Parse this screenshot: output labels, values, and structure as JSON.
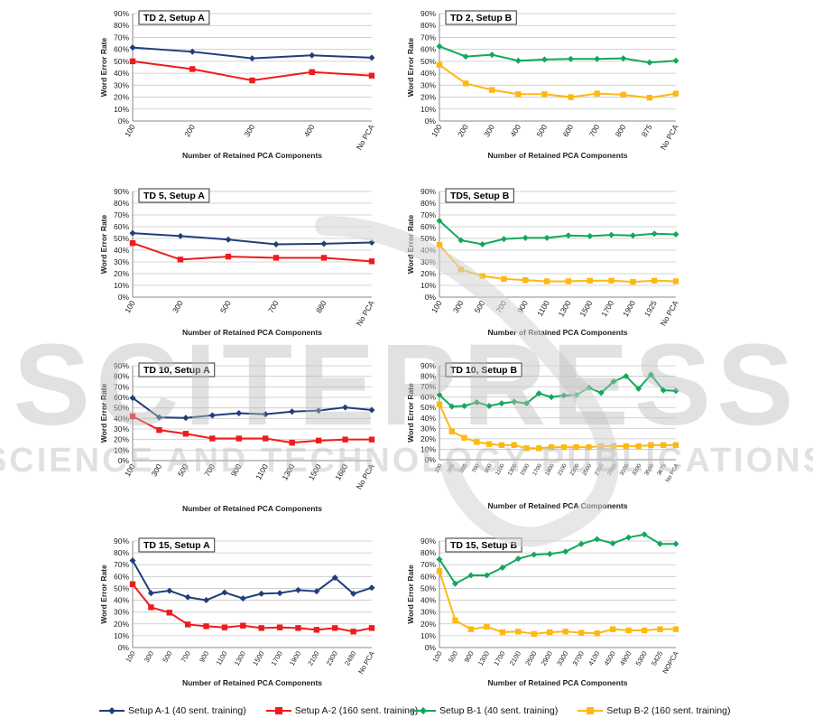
{
  "colors": {
    "setup_a_1": "#1f3f7a",
    "setup_a_2": "#ee1c1c",
    "setup_b_1": "#12a85a",
    "setup_b_2": "#fdb912",
    "grid": "#c8c8c8",
    "axis": "#888888",
    "watermark": "#bdbdbd"
  },
  "watermark": {
    "title": "SCITEPRESS",
    "subtitle": "SCIENCE AND TECHNOLOGY PUBLICATIONS"
  },
  "legend_left": [
    {
      "label": "Setup A-1 (40 sent. training)",
      "color": "#1f3f7a",
      "marker": "diamond"
    },
    {
      "label": "Setup A-2 (160 sent. training)",
      "color": "#ee1c1c",
      "marker": "square"
    }
  ],
  "legend_right": [
    {
      "label": "Setup B-1 (40 sent. training)",
      "color": "#12a85a",
      "marker": "diamond"
    },
    {
      "label": "Setup B-2 (160 sent. training)",
      "color": "#fdb912",
      "marker": "square"
    }
  ],
  "chart_data": [
    {
      "type": "line",
      "title": "TD 2, Setup A",
      "xlabel": "Number of Retained PCA Components",
      "ylabel": "Word Error Rate",
      "ylim": [
        0,
        90
      ],
      "yticks": [
        "0%",
        "10%",
        "20%",
        "30%",
        "40%",
        "50%",
        "60%",
        "70%",
        "80%",
        "90%"
      ],
      "grid": true,
      "categories": [
        "100",
        "200",
        "300",
        "400",
        "No PCA"
      ],
      "series": [
        {
          "name": "Setup A-1 (40 sent. training)",
          "values": [
            61.5,
            58,
            52.5,
            55,
            53
          ]
        },
        {
          "name": "Setup A-2 (160 sent. training)",
          "values": [
            50,
            43.5,
            34,
            41,
            38
          ]
        }
      ]
    },
    {
      "type": "line",
      "title": "TD 2, Setup B",
      "xlabel": "Number of Retained PCA Components",
      "ylabel": "Word Error Rate",
      "ylim": [
        0,
        90
      ],
      "yticks": [
        "0%",
        "10%",
        "20%",
        "30%",
        "40%",
        "50%",
        "60%",
        "70%",
        "80%",
        "90%"
      ],
      "grid": true,
      "categories": [
        "100",
        "200",
        "300",
        "400",
        "500",
        "600",
        "700",
        "800",
        "875",
        "No PCA"
      ],
      "series": [
        {
          "name": "Setup B-1 (40 sent. training)",
          "values": [
            62.5,
            54,
            55.5,
            50.5,
            51.5,
            52,
            52,
            52.5,
            49,
            50.5
          ]
        },
        {
          "name": "Setup B-2 (160 sent. training)",
          "values": [
            47,
            31.5,
            26,
            22.5,
            22.5,
            20,
            23,
            22,
            19.5,
            23
          ]
        }
      ]
    },
    {
      "type": "line",
      "title": "TD 5, Setup A",
      "xlabel": "Number of Retained PCA Components",
      "ylabel": "Word Error Rate",
      "ylim": [
        0,
        90
      ],
      "yticks": [
        "0%",
        "10%",
        "20%",
        "30%",
        "40%",
        "50%",
        "60%",
        "70%",
        "80%",
        "90%"
      ],
      "grid": true,
      "categories": [
        "100",
        "300",
        "500",
        "700",
        "880",
        "No PCA"
      ],
      "series": [
        {
          "name": "Setup A-1 (40 sent. training)",
          "values": [
            54.5,
            52,
            49,
            45,
            45.5,
            46.5
          ]
        },
        {
          "name": "Setup A-2 (160 sent. training)",
          "values": [
            46,
            32,
            34.5,
            33.5,
            33.5,
            30.5
          ]
        }
      ]
    },
    {
      "type": "line",
      "title": "TD5, Setup B",
      "xlabel": "Number of Retained PCA Components",
      "ylabel": "Word Error Rate",
      "ylim": [
        0,
        90
      ],
      "yticks": [
        "0%",
        "10%",
        "20%",
        "30%",
        "40%",
        "50%",
        "60%",
        "70%",
        "80%",
        "90%"
      ],
      "grid": true,
      "categories": [
        "100",
        "300",
        "500",
        "700",
        "900",
        "1100",
        "1300",
        "1500",
        "1700",
        "1900",
        "1925",
        "No PCA"
      ],
      "series": [
        {
          "name": "Setup B-1 (40 sent. training)",
          "values": [
            65,
            48.5,
            45,
            49.5,
            50.5,
            50.5,
            52.5,
            52,
            53,
            52.5,
            54,
            53.5
          ]
        },
        {
          "name": "Setup B-2 (160 sent. training)",
          "values": [
            44.5,
            23.5,
            18,
            15.5,
            14.5,
            13.5,
            13.5,
            14,
            14,
            13,
            14,
            13.5
          ]
        }
      ]
    },
    {
      "type": "line",
      "title": "TD 10, Setup A",
      "xlabel": "Number of Retained PCA Components",
      "ylabel": "Word Error Rate",
      "ylim": [
        0,
        90
      ],
      "yticks": [
        "0%",
        "10%",
        "20%",
        "30%",
        "40%",
        "50%",
        "60%",
        "70%",
        "80%",
        "90%"
      ],
      "grid": true,
      "categories": [
        "100",
        "300",
        "500",
        "700",
        "900",
        "1100",
        "1300",
        "1500",
        "1680",
        "No PCA"
      ],
      "series": [
        {
          "name": "Setup A-1 (40 sent. training)",
          "values": [
            59.5,
            41,
            40.5,
            43,
            45,
            44,
            46.5,
            47.5,
            50.5,
            48
          ]
        },
        {
          "name": "Setup A-2 (160 sent. training)",
          "values": [
            42,
            29,
            25.5,
            21,
            21,
            21,
            17,
            19,
            20,
            20
          ]
        }
      ]
    },
    {
      "type": "line",
      "title": "TD 10, Setup B",
      "xlabel": "Number of Retained PCA Components",
      "ylabel": "Word Error Rate",
      "ylim": [
        0,
        90
      ],
      "yticks": [
        "0%",
        "10%",
        "20%",
        "30%",
        "40%",
        "50%",
        "60%",
        "70%",
        "80%",
        "90%"
      ],
      "grid": true,
      "categories": [
        "100",
        "300",
        "500",
        "700",
        "900",
        "1100",
        "1300",
        "1500",
        "1700",
        "1900",
        "2100",
        "2300",
        "2500",
        "2700",
        "2900",
        "3100",
        "3300",
        "3500",
        "3675",
        "No PCA"
      ],
      "series": [
        {
          "name": "Setup B-1 (40 sent. training)",
          "values": [
            62,
            51,
            51.5,
            55,
            51.5,
            54,
            55.5,
            54,
            63.5,
            60,
            61.5,
            62,
            69,
            64,
            75,
            80,
            68,
            81.5,
            66.5,
            66
          ]
        },
        {
          "name": "Setup B-2 (160 sent. training)",
          "values": [
            53,
            27,
            21,
            17,
            15,
            14,
            14,
            11,
            11,
            12,
            12,
            12,
            12,
            13,
            13,
            13,
            13,
            14,
            14,
            14
          ]
        }
      ]
    },
    {
      "type": "line",
      "title": "TD 15, Setup A",
      "xlabel": "Number of Retained PCA Components",
      "ylabel": "Word Error Rate",
      "ylim": [
        0,
        90
      ],
      "yticks": [
        "0%",
        "10%",
        "20%",
        "30%",
        "40%",
        "50%",
        "60%",
        "70%",
        "80%",
        "90%"
      ],
      "grid": true,
      "categories": [
        "100",
        "300",
        "500",
        "700",
        "900",
        "1100",
        "1300",
        "1500",
        "1700",
        "1900",
        "2100",
        "2300",
        "2480",
        "No PCA"
      ],
      "series": [
        {
          "name": "Setup A-1 (40 sent. training)",
          "values": [
            73.5,
            46,
            48,
            42.5,
            40,
            46.5,
            41.5,
            45.5,
            46,
            48.5,
            47.5,
            59,
            45.5,
            50.5
          ]
        },
        {
          "name": "Setup A-2 (160 sent. training)",
          "values": [
            53.5,
            34,
            29.5,
            19.5,
            18,
            17,
            18.5,
            16.5,
            17,
            16.5,
            15,
            16.5,
            13.5,
            16.5
          ]
        }
      ]
    },
    {
      "type": "line",
      "title": "TD 15, Setup B",
      "xlabel": "Number of Retained PCA Components",
      "ylabel": "Word Error Rate",
      "ylim": [
        0,
        90
      ],
      "yticks": [
        "0%",
        "10%",
        "20%",
        "30%",
        "40%",
        "50%",
        "60%",
        "70%",
        "80%",
        "90%"
      ],
      "grid": true,
      "categories": [
        "100",
        "500",
        "900",
        "1300",
        "1700",
        "2100",
        "2500",
        "2900",
        "3300",
        "3700",
        "4100",
        "4500",
        "4900",
        "5300",
        "5425",
        "NOPCA"
      ],
      "series": [
        {
          "name": "Setup B-1 (40 sent. training)",
          "values": [
            74.5,
            54,
            61,
            61,
            67.5,
            75,
            78.5,
            79,
            81,
            87.5,
            91.5,
            88,
            93,
            95.5,
            87.5,
            87.5
          ]
        },
        {
          "name": "Setup B-2 (160 sent. training)",
          "values": [
            64.5,
            23,
            15.5,
            17.5,
            13,
            13.5,
            11.5,
            13,
            13.5,
            12.5,
            12,
            15.5,
            14.5,
            14.5,
            15.5,
            15.5
          ]
        }
      ]
    }
  ]
}
